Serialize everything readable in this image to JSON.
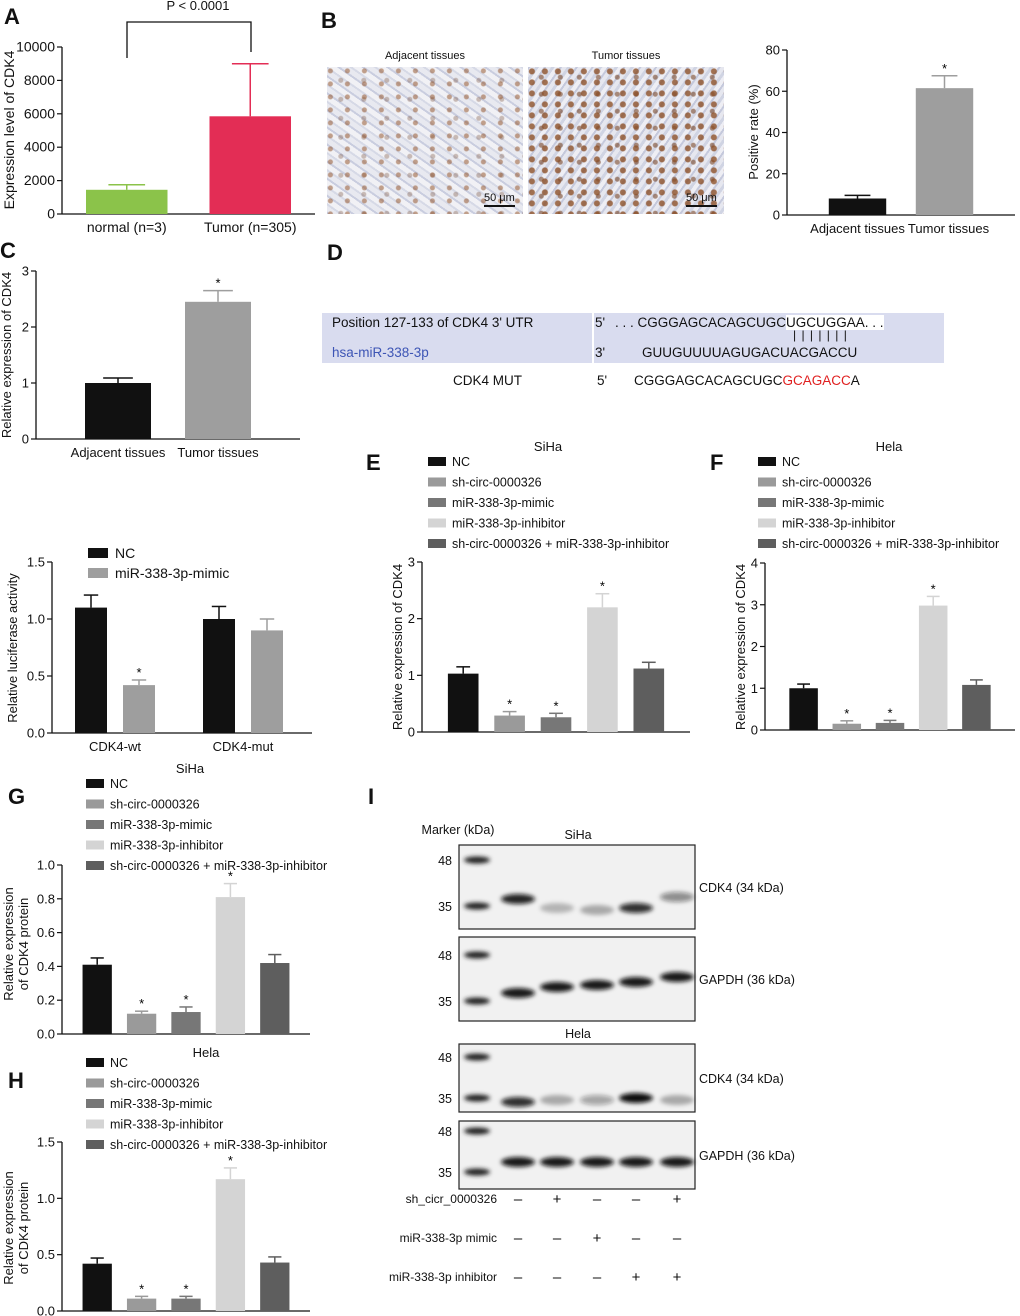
{
  "panels": {
    "A": "A",
    "B": "B",
    "C": "C",
    "D": "D",
    "E": "E",
    "F": "F",
    "G": "G",
    "H": "H",
    "I": "I"
  },
  "colors": {
    "NC": "#111111",
    "sh": "#9a9a9a",
    "mimic": "#777777",
    "inhibitor": "#d4d4d4",
    "combo": "#5e5e5e",
    "normal": "#8bc34a",
    "tumor": "#e32d55",
    "gray_bar": "#9e9e9e"
  },
  "legend_groups": [
    "NC",
    "sh-circ-0000326",
    "miR-338-3p-mimic",
    "miR-338-3p-inhibitor",
    "sh-circ-0000326 + miR-338-3p-inhibitor"
  ],
  "panel_b_images": {
    "left_title": "Adjacent tissues",
    "right_title": "Tumor tissues",
    "scale_bar": "50 μm"
  },
  "panel_d": {
    "utr_label": "Position 127-133 of CDK4  3'  UTR",
    "mirna_label": "hsa-miR-338-3p",
    "utr_prime": "5'",
    "utr_seq_pre": ". . . CGGGAGCACAGCUGC",
    "utr_seq_site": "UGCUGGAA. . .",
    "pairing": "| | | | | | |",
    "mirna_prime": "3'",
    "mirna_seq": "GUUGUUUUAGUGACUACGACCU",
    "mut_label": "CDK4 MUT",
    "mut_prime": "5'",
    "mut_seq_pre": "CGGGAGCACAGCUGC",
    "mut_seq_mut": "GCAGACC",
    "mut_seq_post": "A"
  },
  "chart_data": [
    {
      "id": "A",
      "type": "bar",
      "title": "",
      "annotation": "P < 0.0001",
      "ylabel": "Expression level of CDK4",
      "categories": [
        "normal (n=3)",
        "Tumor (n=305)"
      ],
      "values": [
        1450,
        5850
      ],
      "errors": [
        1750,
        9000
      ],
      "ylim": [
        0,
        10000
      ],
      "yticks": [
        "0",
        "2000",
        "4000",
        "6000",
        "8000",
        "10000"
      ],
      "colors": [
        "#8bc34a",
        "#e32d55"
      ],
      "stars": [
        false,
        false
      ]
    },
    {
      "id": "B",
      "type": "bar",
      "ylabel": "Positive rate (%)",
      "categories": [
        "Adjacent tissues",
        "Tumor tissues"
      ],
      "values": [
        8,
        61.5
      ],
      "errors": [
        9.5,
        67.5
      ],
      "ylim": [
        0,
        80
      ],
      "yticks": [
        "0",
        "20",
        "40",
        "60",
        "80"
      ],
      "colors": [
        "#111111",
        "#9e9e9e"
      ],
      "stars": [
        false,
        true
      ]
    },
    {
      "id": "C",
      "type": "bar",
      "ylabel": "Relative expression of CDK4",
      "categories": [
        "Adjacent tissues",
        "Tumor tissues"
      ],
      "values": [
        1.0,
        2.45
      ],
      "errors": [
        1.09,
        2.65
      ],
      "ylim": [
        0,
        3
      ],
      "yticks": [
        "0",
        "1",
        "2",
        "3"
      ],
      "colors": [
        "#111111",
        "#9e9e9e"
      ],
      "stars": [
        false,
        true
      ]
    },
    {
      "id": "luciferase",
      "type": "bar",
      "ylabel": "Relative luciferase activity",
      "categories": [
        "CDK4-wt",
        "CDK4-mut"
      ],
      "legend": [
        "NC",
        "miR-338-3p-mimic"
      ],
      "series": [
        {
          "name": "NC",
          "values": [
            1.1,
            1.0
          ],
          "errors": [
            1.21,
            1.11
          ],
          "color": "#111111",
          "stars": [
            false,
            false
          ]
        },
        {
          "name": "miR-338-3p-mimic",
          "values": [
            0.42,
            0.9
          ],
          "errors": [
            0.465,
            1.0
          ],
          "color": "#9e9e9e",
          "stars": [
            true,
            false
          ]
        }
      ],
      "ylim": [
        0,
        1.5
      ],
      "yticks": [
        "0.0",
        "0.5",
        "1.0",
        "1.5"
      ]
    },
    {
      "id": "E",
      "type": "bar",
      "title": "SiHa",
      "ylabel": "Relative expression of CDK4",
      "categories": [
        "NC",
        "sh-circ-0000326",
        "miR-338-3p-mimic",
        "miR-338-3p-inhibitor",
        "sh-circ-0000326 + miR-338-3p-inhibitor"
      ],
      "values": [
        1.03,
        0.29,
        0.26,
        2.2,
        1.12
      ],
      "errors": [
        1.15,
        0.36,
        0.33,
        2.44,
        1.23
      ],
      "ylim": [
        0,
        3
      ],
      "yticks": [
        "0",
        "1",
        "2",
        "3"
      ],
      "stars": [
        false,
        true,
        true,
        true,
        false
      ]
    },
    {
      "id": "F",
      "type": "bar",
      "title": "Hela",
      "ylabel": "Relative expression of CDK4",
      "categories": [
        "NC",
        "sh-circ-0000326",
        "miR-338-3p-mimic",
        "miR-338-3p-inhibitor",
        "sh-circ-0000326 + miR-338-3p-inhibitor"
      ],
      "values": [
        1.0,
        0.15,
        0.17,
        2.98,
        1.08
      ],
      "errors": [
        1.1,
        0.22,
        0.23,
        3.2,
        1.2
      ],
      "ylim": [
        0,
        4
      ],
      "yticks": [
        "0",
        "1",
        "2",
        "3",
        "4"
      ],
      "stars": [
        false,
        true,
        true,
        true,
        false
      ]
    },
    {
      "id": "G",
      "type": "bar",
      "title": "SiHa",
      "ylabel": [
        "Relative expression",
        "of CDK4 protein"
      ],
      "categories": [
        "NC",
        "sh-circ-0000326",
        "miR-338-3p-mimic",
        "miR-338-3p-inhibitor",
        "sh-circ-0000326 + miR-338-3p-inhibitor"
      ],
      "values": [
        0.41,
        0.12,
        0.13,
        0.81,
        0.42
      ],
      "errors": [
        0.45,
        0.135,
        0.16,
        0.89,
        0.47
      ],
      "ylim": [
        0,
        1.0
      ],
      "yticks": [
        "0.0",
        "0.2",
        "0.4",
        "0.6",
        "0.8",
        "1.0"
      ],
      "stars": [
        false,
        true,
        true,
        true,
        false
      ]
    },
    {
      "id": "H",
      "type": "bar",
      "title": "Hela",
      "ylabel": [
        "Relative expression",
        "of CDK4 protein"
      ],
      "categories": [
        "NC",
        "sh-circ-0000326",
        "miR-338-3p-mimic",
        "miR-338-3p-inhibitor",
        "sh-circ-0000326 + miR-338-3p-inhibitor"
      ],
      "values": [
        0.42,
        0.11,
        0.11,
        1.17,
        0.43
      ],
      "errors": [
        0.47,
        0.13,
        0.13,
        1.27,
        0.48
      ],
      "ylim": [
        0,
        1.5
      ],
      "yticks": [
        "0.0",
        "0.5",
        "1.0",
        "1.5"
      ],
      "stars": [
        false,
        true,
        true,
        true,
        false
      ]
    }
  ],
  "western_blot": {
    "marker_label": "Marker (kDa)",
    "cell_lines": [
      "SiHa",
      "Hela"
    ],
    "marker_ticks": [
      "48",
      "35"
    ],
    "rows": [
      "CDK4 (34 kDa)",
      "GAPDH (36 kDa)",
      "CDK4 (34 kDa)",
      "GAPDH (36 kDa)"
    ],
    "treatments": [
      {
        "label": "sh_cicr_0000326",
        "signs": [
          "–",
          "+",
          "–",
          "–",
          "+"
        ]
      },
      {
        "label": "miR-338-3p mimic",
        "signs": [
          "–",
          "–",
          "+",
          "–",
          "–"
        ]
      },
      {
        "label": "miR-338-3p inhibitor",
        "signs": [
          "–",
          "–",
          "–",
          "+",
          "+"
        ]
      }
    ]
  }
}
